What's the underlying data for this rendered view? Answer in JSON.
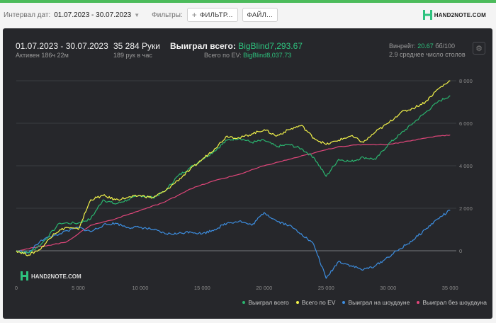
{
  "filters": {
    "date_label": "Интервал дат:",
    "date_value": "01.07.2023 - 30.07.2023",
    "filters_label": "Фильтры:",
    "filter_button": "ФИЛЬТР...",
    "file_button": "ФАЙЛ..."
  },
  "brand": {
    "logo_text": "HAND2NOTE.COM",
    "logo_small": "HAND2NOTE.COM"
  },
  "summary": {
    "date_range": "01.07.2023 - 30.07.2023",
    "active": "Активен 186ч 22м",
    "hands": "35 284 Руки",
    "hands_per_hour": "189 рук в час",
    "won_label": "Выиграл всего:",
    "won_value": "BigBlind7,293.67",
    "ev_label": "Всего по EV:",
    "ev_value": "BigBlind8,037.73",
    "winrate_label": "Винрейт:",
    "winrate_value": "20.67",
    "winrate_unit": "бб/100",
    "tables": "2.9 среднее число столов"
  },
  "colors": {
    "won": "#2ab56f",
    "ev": "#f3f34a",
    "showdown": "#3d8ee0",
    "no_showdown": "#e0467a",
    "accent": "#2ec27e"
  },
  "chart_data": {
    "type": "line",
    "xlim": [
      0,
      35500
    ],
    "ylim": [
      -1500,
      8300
    ],
    "x_ticks": [
      0,
      5000,
      10000,
      15000,
      20000,
      25000,
      30000,
      35000
    ],
    "x_tick_labels": [
      "0",
      "5 000",
      "10 000",
      "15 000",
      "20 000",
      "25 000",
      "30 000",
      "35 000"
    ],
    "y_ticks": [
      0,
      2000,
      4000,
      6000,
      8000
    ],
    "y_tick_labels": [
      "0",
      "2 000",
      "4 000",
      "6 000",
      "8 000"
    ],
    "grid": true,
    "legend_position": "bottom-right",
    "series": [
      {
        "name": "Выиграл всего",
        "color_key": "won",
        "points": [
          [
            0,
            0
          ],
          [
            1000,
            -100
          ],
          [
            2000,
            300
          ],
          [
            3500,
            1300
          ],
          [
            5000,
            1300
          ],
          [
            6000,
            1500
          ],
          [
            7000,
            2400
          ],
          [
            8000,
            2200
          ],
          [
            9000,
            2400
          ],
          [
            10000,
            2600
          ],
          [
            11000,
            2500
          ],
          [
            12000,
            2800
          ],
          [
            13000,
            3500
          ],
          [
            14000,
            3900
          ],
          [
            15000,
            4300
          ],
          [
            16000,
            4700
          ],
          [
            17000,
            5200
          ],
          [
            18000,
            5300
          ],
          [
            19000,
            5100
          ],
          [
            20000,
            5200
          ],
          [
            21000,
            4900
          ],
          [
            22000,
            5000
          ],
          [
            23000,
            4800
          ],
          [
            24000,
            4400
          ],
          [
            25000,
            3500
          ],
          [
            26000,
            4300
          ],
          [
            27000,
            4200
          ],
          [
            28000,
            4400
          ],
          [
            29000,
            4300
          ],
          [
            30000,
            5000
          ],
          [
            31000,
            5500
          ],
          [
            32000,
            6000
          ],
          [
            33000,
            6500
          ],
          [
            34000,
            7000
          ],
          [
            35000,
            7300
          ]
        ]
      },
      {
        "name": "Всего по EV",
        "color_key": "ev",
        "points": [
          [
            0,
            0
          ],
          [
            1000,
            -200
          ],
          [
            2000,
            100
          ],
          [
            3000,
            800
          ],
          [
            4000,
            1100
          ],
          [
            5000,
            1000
          ],
          [
            6000,
            2400
          ],
          [
            7000,
            2600
          ],
          [
            8000,
            2400
          ],
          [
            9000,
            2500
          ],
          [
            10000,
            2600
          ],
          [
            11000,
            2500
          ],
          [
            12000,
            2800
          ],
          [
            13000,
            3300
          ],
          [
            14000,
            3800
          ],
          [
            15000,
            4300
          ],
          [
            16000,
            4800
          ],
          [
            17000,
            5400
          ],
          [
            18000,
            5300
          ],
          [
            19000,
            5500
          ],
          [
            20000,
            5700
          ],
          [
            21000,
            5400
          ],
          [
            22000,
            5700
          ],
          [
            23000,
            5900
          ],
          [
            24000,
            5300
          ],
          [
            25000,
            5000
          ],
          [
            26000,
            5200
          ],
          [
            27000,
            5400
          ],
          [
            28000,
            5100
          ],
          [
            29000,
            5600
          ],
          [
            30000,
            6000
          ],
          [
            31000,
            6500
          ],
          [
            32000,
            6700
          ],
          [
            33000,
            7000
          ],
          [
            34000,
            7600
          ],
          [
            35000,
            8000
          ]
        ]
      },
      {
        "name": "Выиграл на шоудауне",
        "color_key": "showdown",
        "points": [
          [
            0,
            0
          ],
          [
            1000,
            -100
          ],
          [
            2000,
            500
          ],
          [
            3500,
            800
          ],
          [
            5000,
            1100
          ],
          [
            6000,
            900
          ],
          [
            7000,
            1200
          ],
          [
            8000,
            1300
          ],
          [
            9000,
            1100
          ],
          [
            10000,
            1100
          ],
          [
            11000,
            1000
          ],
          [
            12000,
            800
          ],
          [
            13000,
            800
          ],
          [
            14000,
            900
          ],
          [
            15000,
            800
          ],
          [
            16000,
            1000
          ],
          [
            17000,
            1300
          ],
          [
            18000,
            1400
          ],
          [
            19000,
            1200
          ],
          [
            20000,
            1800
          ],
          [
            21000,
            1400
          ],
          [
            22000,
            1200
          ],
          [
            23000,
            800
          ],
          [
            24000,
            300
          ],
          [
            25000,
            -1300
          ],
          [
            26000,
            -500
          ],
          [
            27000,
            -700
          ],
          [
            28000,
            -900
          ],
          [
            29000,
            -700
          ],
          [
            30000,
            -300
          ],
          [
            31000,
            100
          ],
          [
            32000,
            500
          ],
          [
            33000,
            1000
          ],
          [
            34000,
            1500
          ],
          [
            35000,
            1900
          ]
        ]
      },
      {
        "name": "Выиграл без шоудауна",
        "color_key": "no_showdown",
        "points": [
          [
            0,
            0
          ],
          [
            2000,
            200
          ],
          [
            4000,
            400
          ],
          [
            6000,
            1200
          ],
          [
            8000,
            1500
          ],
          [
            10000,
            1900
          ],
          [
            12000,
            2300
          ],
          [
            14000,
            2900
          ],
          [
            16000,
            3300
          ],
          [
            18000,
            3600
          ],
          [
            20000,
            4000
          ],
          [
            22000,
            4300
          ],
          [
            24000,
            4600
          ],
          [
            26000,
            4900
          ],
          [
            28000,
            5000
          ],
          [
            30000,
            5000
          ],
          [
            32000,
            5200
          ],
          [
            34000,
            5400
          ],
          [
            35000,
            5450
          ]
        ]
      }
    ],
    "watermark": "HAND2NOTE.COM"
  }
}
